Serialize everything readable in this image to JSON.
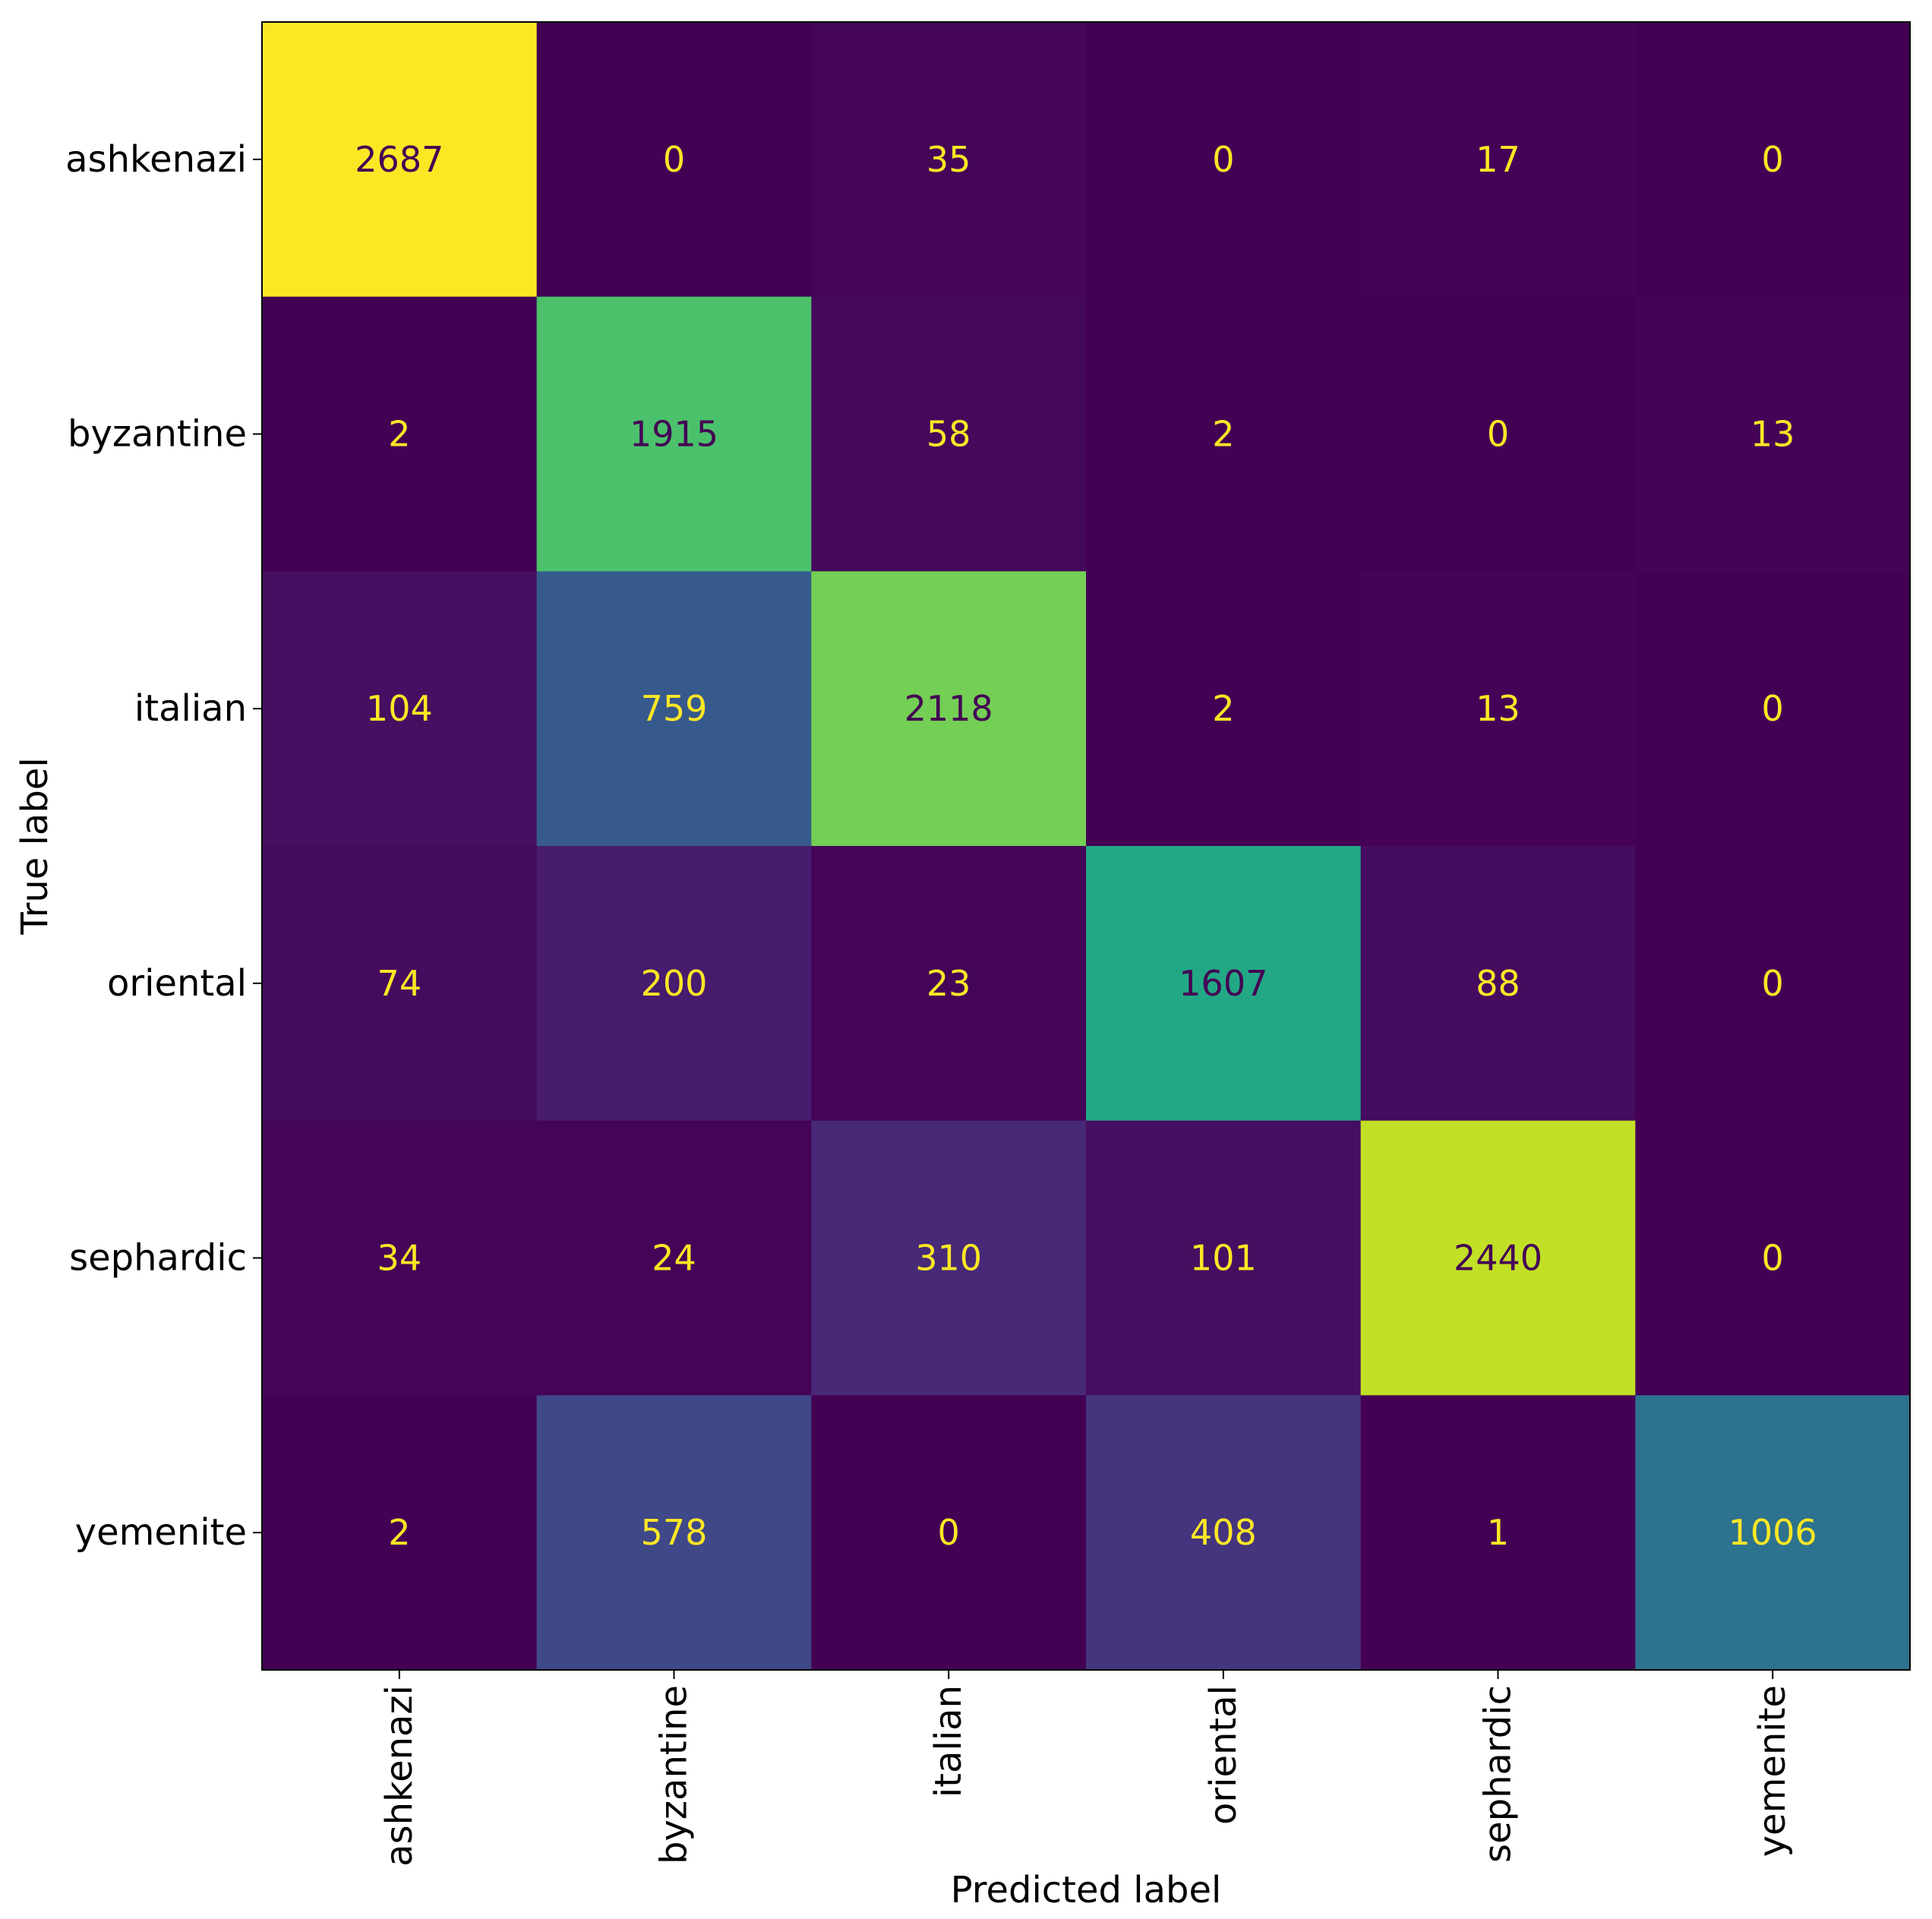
{
  "chart_data": {
    "type": "heatmap",
    "title": "",
    "xlabel": "Predicted label",
    "ylabel": "True label",
    "x_categories": [
      "ashkenazi",
      "byzantine",
      "italian",
      "oriental",
      "sephardic",
      "yemenite"
    ],
    "y_categories": [
      "ashkenazi",
      "byzantine",
      "italian",
      "oriental",
      "sephardic",
      "yemenite"
    ],
    "matrix": [
      [
        2687,
        0,
        35,
        0,
        17,
        0
      ],
      [
        2,
        1915,
        58,
        2,
        0,
        13
      ],
      [
        104,
        759,
        2118,
        2,
        13,
        0
      ],
      [
        74,
        200,
        23,
        1607,
        88,
        0
      ],
      [
        34,
        24,
        310,
        101,
        2440,
        0
      ],
      [
        2,
        578,
        0,
        408,
        1,
        1006
      ]
    ],
    "value_range": [
      0,
      2687
    ],
    "colormap": "viridis",
    "colorbar": false,
    "x_tick_rotation": 90,
    "text_color_dark_bg": "#fde725",
    "text_color_light_bg": "#440154"
  }
}
